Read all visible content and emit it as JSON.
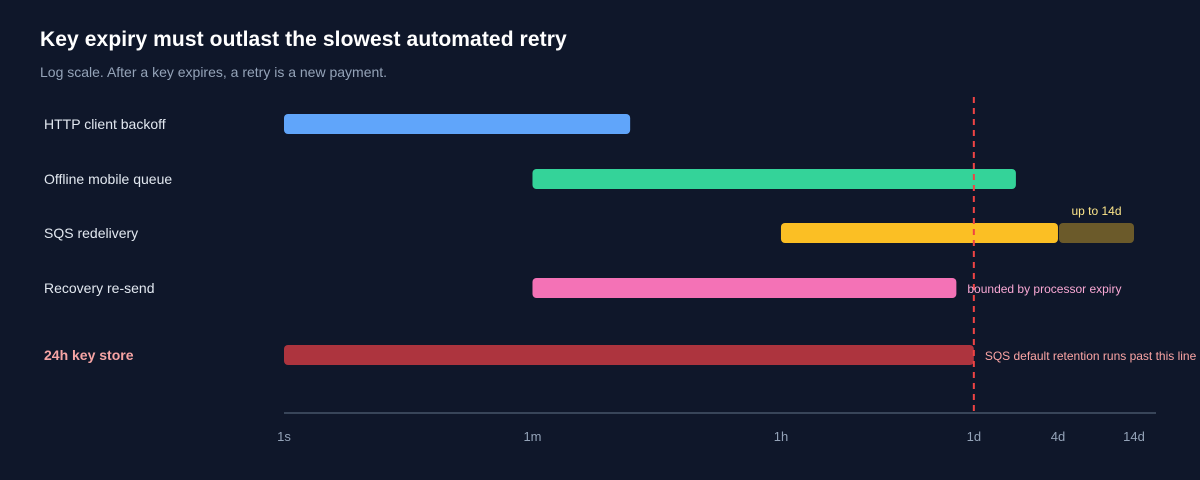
{
  "header": {
    "title": "Key expiry must outlast the slowest automated retry",
    "subtitle": "Log scale. After a key expires, a retry is a new payment."
  },
  "colors": {
    "background": "#0f172a",
    "axis": "#475569",
    "threshold": "#ef4444",
    "tick_text": "#94a3b8"
  },
  "chart_data": {
    "type": "bar",
    "subtype": "range-gantt",
    "x_scale": "log",
    "x_unit": "seconds",
    "xlim": [
      1,
      1209600
    ],
    "ticks": [
      {
        "label": "1s",
        "value": 1
      },
      {
        "label": "1m",
        "value": 60
      },
      {
        "label": "1h",
        "value": 3600
      },
      {
        "label": "1d",
        "value": 86400
      },
      {
        "label": "4d",
        "value": 345600
      },
      {
        "label": "14d",
        "value": 1209600
      }
    ],
    "rows": [
      {
        "label": "HTTP client backoff",
        "start": 1,
        "end": 300,
        "color": "#60a5fa",
        "emphasis": false
      },
      {
        "label": "Offline mobile queue",
        "start": 60,
        "end": 172800,
        "color": "#34d399",
        "emphasis": false
      },
      {
        "label": "SQS redelivery",
        "start": 3600,
        "end": 345600,
        "color": "#fbbf24",
        "emphasis": false,
        "extension": {
          "end": 1209600,
          "color": "#6b5a2a",
          "label": "up to 14d",
          "label_color": "#fde68a"
        }
      },
      {
        "label": "Recovery re-send",
        "start": 60,
        "end": 64800,
        "color": "#f472b6",
        "emphasis": false,
        "note": {
          "text": "bounded by processor expiry",
          "color": "#f9a8d4"
        }
      },
      {
        "label": "24h key store",
        "start": 1,
        "end": 86400,
        "color": "#ad343e",
        "emphasis": true,
        "note": {
          "text": "SQS default retention runs past this line",
          "color": "#fca5a5"
        }
      }
    ],
    "threshold": {
      "value": 86400,
      "style": "dashed",
      "color": "#ef4444"
    }
  }
}
